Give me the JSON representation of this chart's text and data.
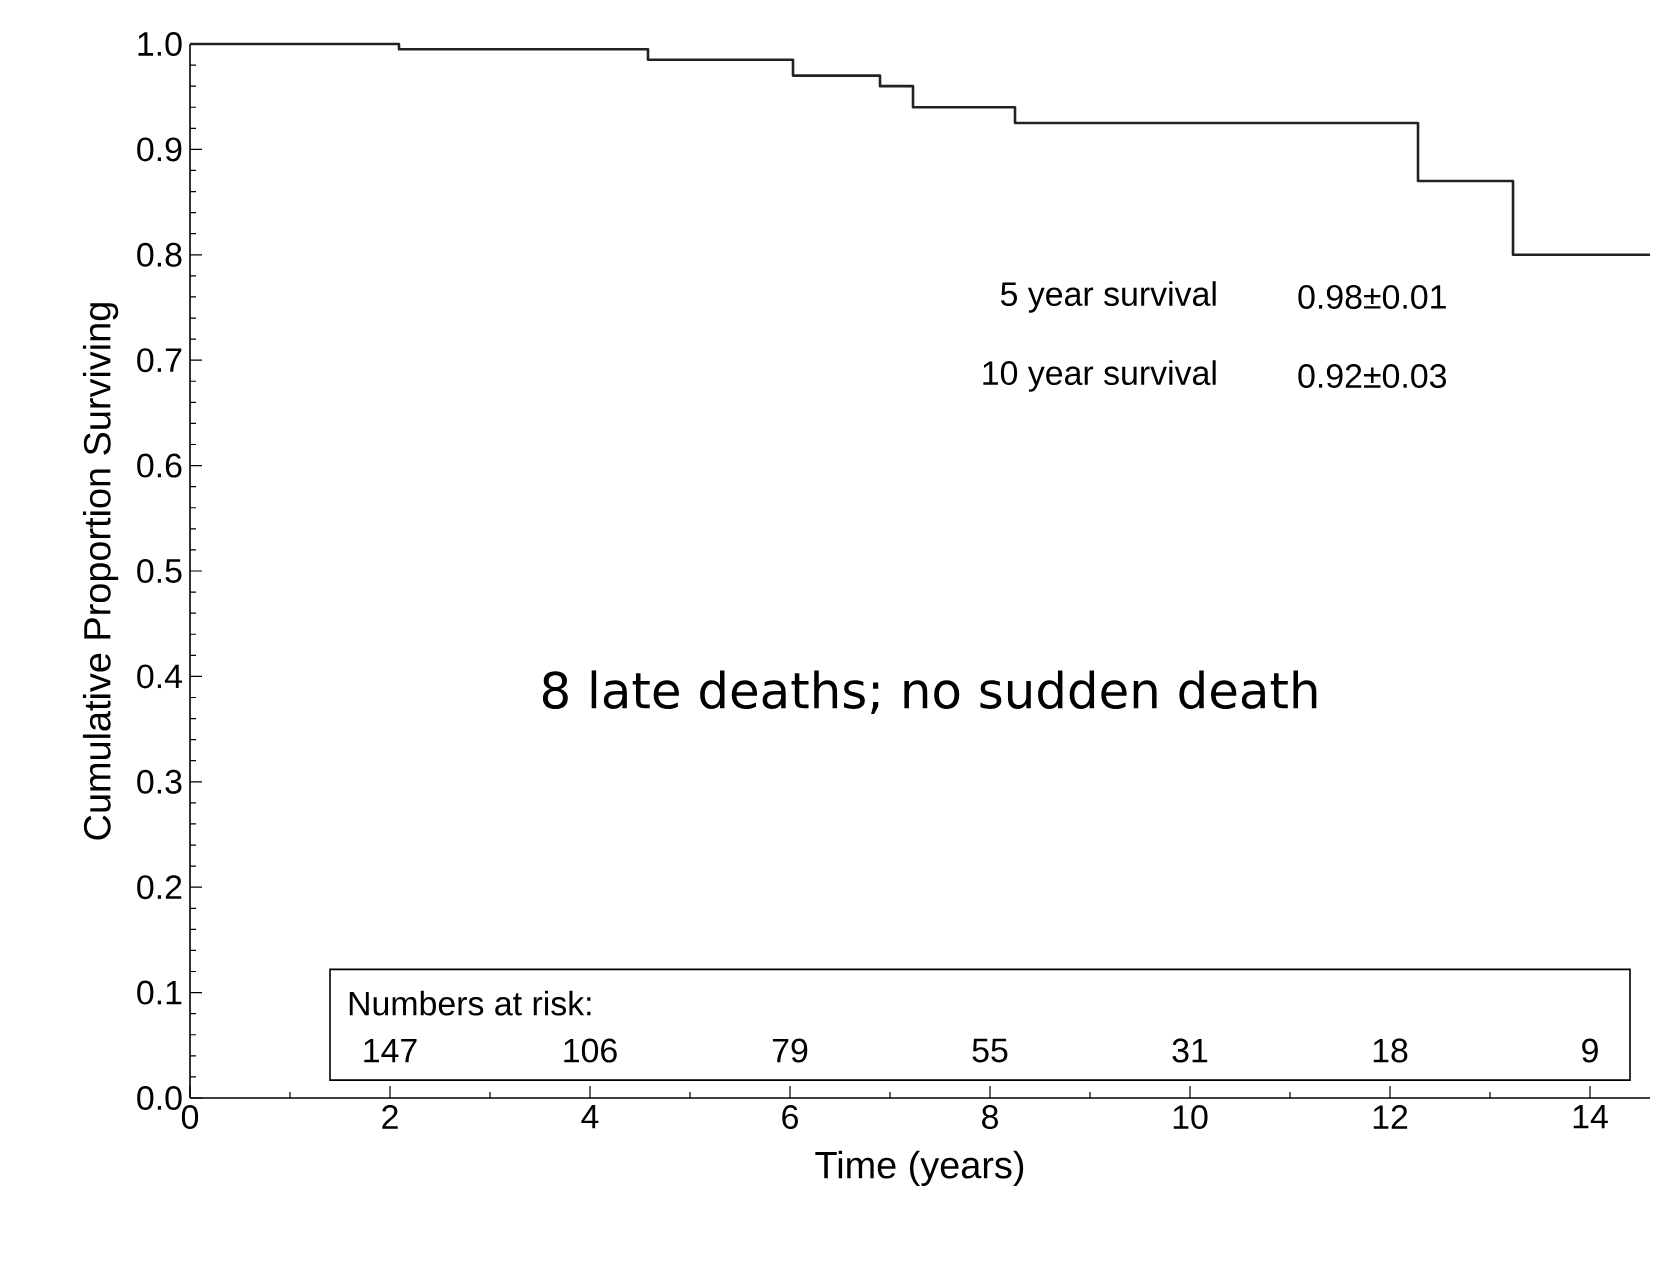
{
  "chart_data": {
    "type": "step",
    "xlabel": "Time (years)",
    "ylabel": "Cumulative Proportion Surviving",
    "x": [
      0,
      2.09,
      4.58,
      6.03,
      6.9,
      7.23,
      8.25,
      12.28,
      13.23,
      14.6
    ],
    "series": [
      {
        "color": "#222222",
        "values": [
          1.0,
          0.995,
          0.985,
          0.97,
          0.96,
          0.94,
          0.925,
          0.87,
          0.8,
          0.8
        ]
      }
    ],
    "xlim": [
      0,
      14.6
    ],
    "ylim": [
      0,
      1
    ],
    "xticks": [
      0,
      2,
      4,
      6,
      8,
      10,
      12,
      14
    ],
    "yticks": [
      {
        "value": 0,
        "label": "0.0"
      },
      0.1,
      0.2,
      0.3,
      0.4,
      0.5,
      0.6,
      0.7,
      0.8,
      0.9,
      {
        "value": 1,
        "label": "1.0"
      }
    ],
    "grid": false,
    "marker": "none",
    "line_style": "solid",
    "annotations": [
      "5 year survival",
      "0.98±0.01",
      "10 year survival",
      "0.92±0.03",
      "8 late deaths; no sudden death",
      "Numbers at risk:",
      "147",
      "106",
      "79",
      "55",
      "31",
      "18",
      "9"
    ]
  }
}
